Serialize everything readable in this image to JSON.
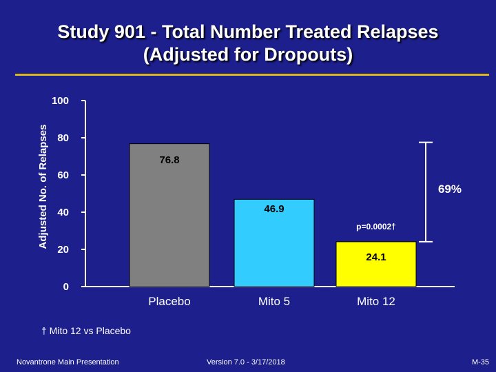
{
  "slide": {
    "title_line1": "Study 901 - Total Number Treated Relapses",
    "title_line2": "(Adjusted for Dropouts)",
    "footnote": "† Mito 12 vs Placebo",
    "footer_left": "Novantrone Main Presentation",
    "footer_center": "Version 7.0 - 3/17/2018",
    "footer_right": "M-35"
  },
  "chart_data": {
    "type": "bar",
    "categories": [
      "Placebo",
      "Mito 5",
      "Mito 12"
    ],
    "values": [
      76.8,
      46.9,
      24.1
    ],
    "value_labels": [
      "76.8",
      "46.9",
      "24.1"
    ],
    "bar_colors": [
      "#808080",
      "#33ccff",
      "#ffff00"
    ],
    "ylabel": "Adjusted No. of Relapses",
    "ylim": [
      0,
      100
    ],
    "yticks": [
      0,
      20,
      40,
      60,
      80,
      100
    ],
    "ytick_labels": [
      "0",
      "20",
      "40",
      "60",
      "80",
      "100"
    ],
    "annotations": {
      "reduction": "69%",
      "pvalue": "p=0.0002†",
      "bracket_from": 76.8,
      "bracket_to": 24.1
    }
  }
}
